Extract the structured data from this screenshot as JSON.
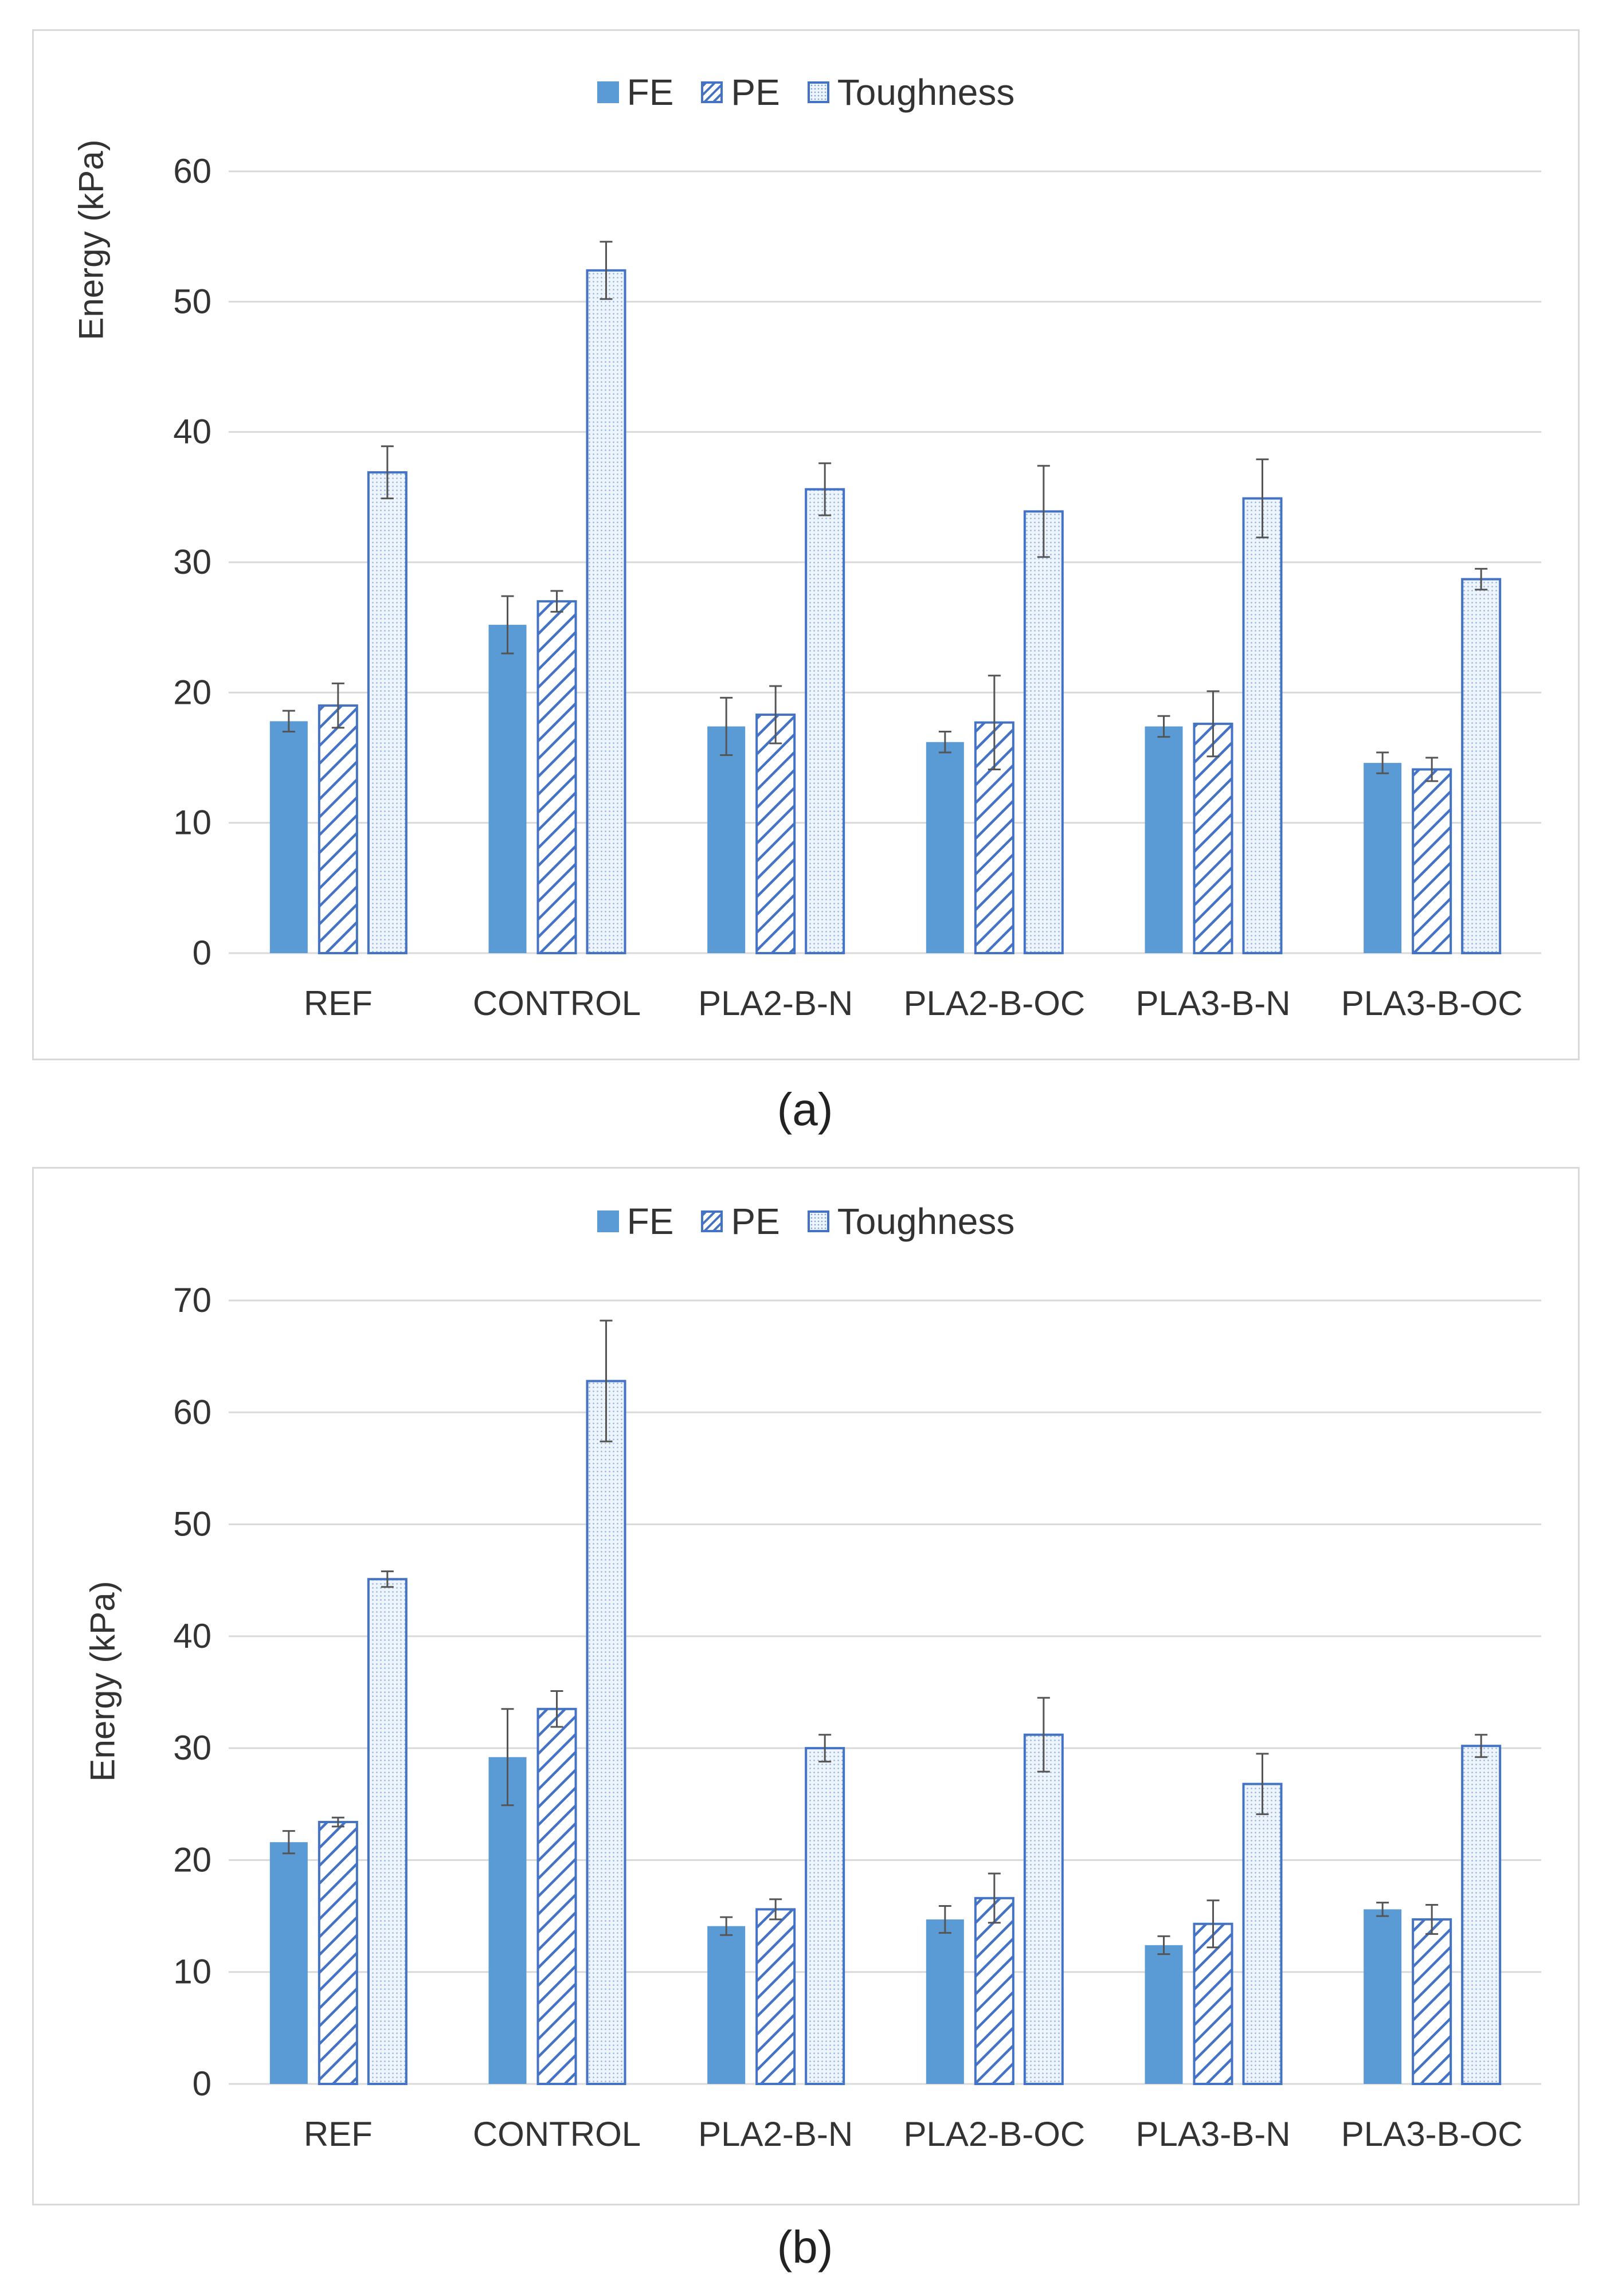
{
  "captions": [
    "(a)",
    "(b)"
  ],
  "colors": {
    "fe": "#5b9bd5",
    "pe_line": "#4472c4",
    "toughness_line": "#4472c4",
    "toughness_fill": "#eef4fb",
    "grid": "#d9d9d9",
    "error": "#555555"
  },
  "chart_data": [
    {
      "type": "bar",
      "title": "",
      "xlabel": "",
      "ylabel": "Energy (kPa)",
      "ylim": [
        0,
        60
      ],
      "yticks": [
        "0",
        "10",
        "20",
        "30",
        "40",
        "50",
        "60"
      ],
      "legend": [
        "FE",
        "PE",
        "Toughness"
      ],
      "categories": [
        "REF",
        "CONTROL",
        "PLA2-B-N",
        "PLA2-B-OC",
        "PLA3-B-N",
        "PLA3-B-OC"
      ],
      "series": [
        {
          "name": "FE",
          "values": [
            17.8,
            25.2,
            17.4,
            16.2,
            17.4,
            14.6
          ],
          "errors": [
            0.8,
            2.2,
            2.2,
            0.8,
            0.8,
            0.8
          ]
        },
        {
          "name": "PE",
          "values": [
            19.0,
            27.0,
            18.3,
            17.7,
            17.6,
            14.1
          ],
          "errors": [
            1.7,
            0.8,
            2.2,
            3.6,
            2.5,
            0.9
          ]
        },
        {
          "name": "Toughness",
          "values": [
            36.9,
            52.4,
            35.6,
            33.9,
            34.9,
            28.7
          ],
          "errors": [
            2.0,
            2.2,
            2.0,
            3.5,
            3.0,
            0.8
          ]
        }
      ]
    },
    {
      "type": "bar",
      "title": "",
      "xlabel": "",
      "ylabel": "Energy (kPa)",
      "ylim": [
        0,
        70
      ],
      "yticks": [
        "0",
        "10",
        "20",
        "30",
        "40",
        "50",
        "60",
        "70"
      ],
      "legend": [
        "FE",
        "PE",
        "Toughness"
      ],
      "categories": [
        "REF",
        "CONTROL",
        "PLA2-B-N",
        "PLA2-B-OC",
        "PLA3-B-N",
        "PLA3-B-OC"
      ],
      "series": [
        {
          "name": "FE",
          "values": [
            21.6,
            29.2,
            14.1,
            14.7,
            12.4,
            15.6
          ],
          "errors": [
            1.0,
            4.3,
            0.8,
            1.2,
            0.8,
            0.6
          ]
        },
        {
          "name": "PE",
          "values": [
            23.4,
            33.5,
            15.6,
            16.6,
            14.3,
            14.7
          ],
          "errors": [
            0.4,
            1.6,
            0.9,
            2.2,
            2.1,
            1.3
          ]
        },
        {
          "name": "Toughness",
          "values": [
            45.1,
            62.8,
            30.0,
            31.2,
            26.8,
            30.2
          ],
          "errors": [
            0.7,
            5.4,
            1.2,
            3.3,
            2.7,
            1.0
          ]
        }
      ]
    }
  ]
}
